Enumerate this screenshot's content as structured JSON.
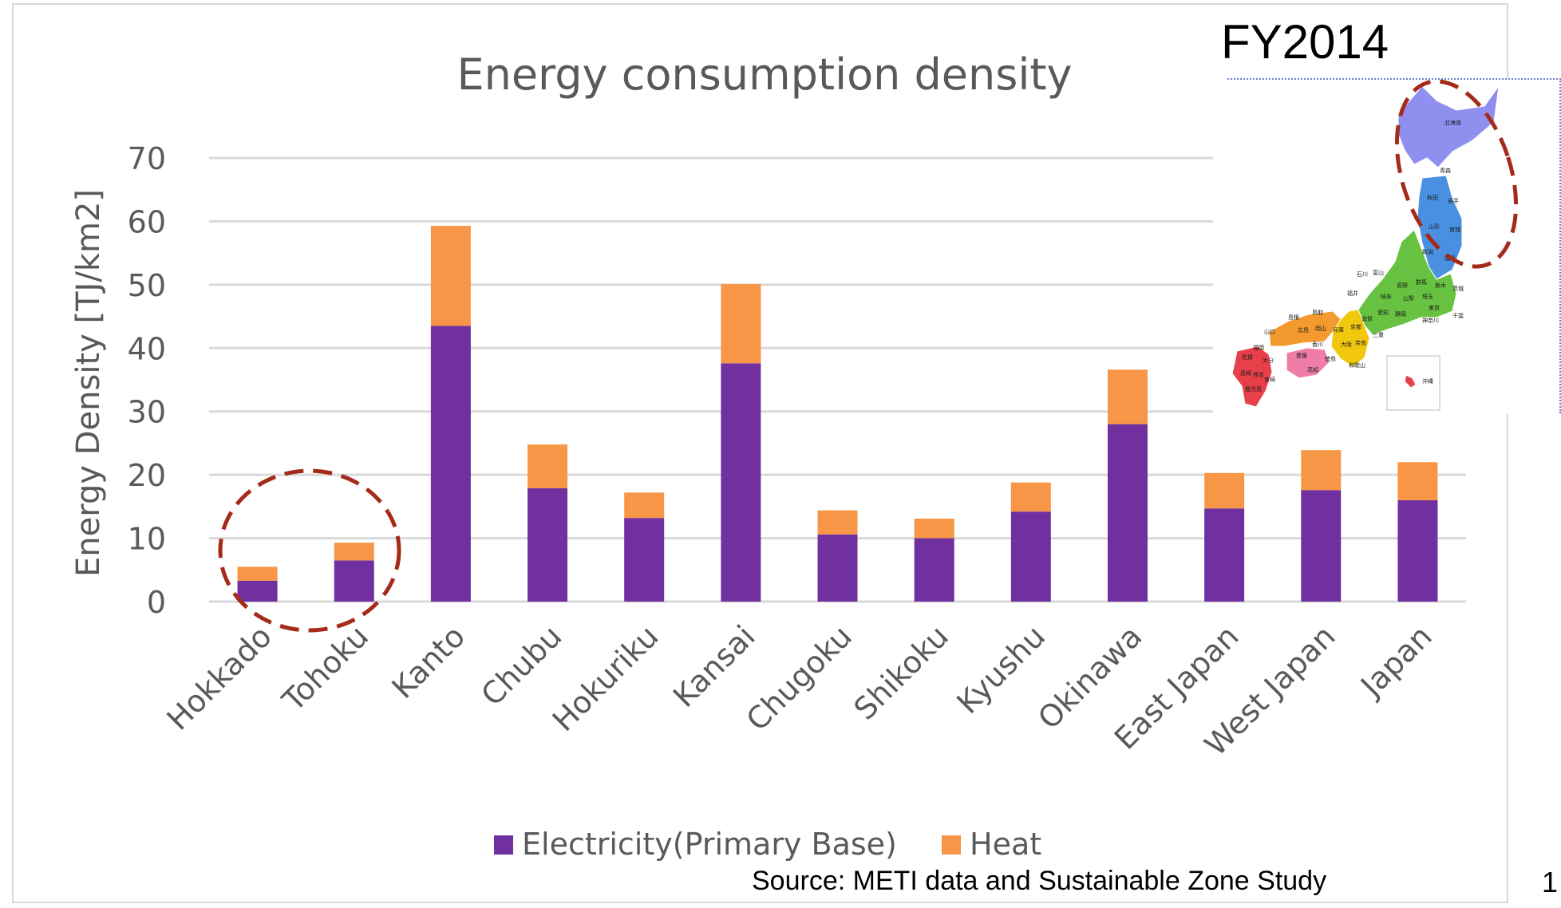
{
  "chart_data": {
    "type": "bar",
    "stacked": true,
    "title": "Energy consumption density",
    "ylabel": "Energy Density [TJ/km2]",
    "xlabel": "",
    "ylim": [
      0,
      70
    ],
    "yticks": [
      0,
      10,
      20,
      30,
      40,
      50,
      60,
      70
    ],
    "grid": true,
    "legend_position": "bottom",
    "categories": [
      "Hokkado",
      "Tohoku",
      "Kanto",
      "Chubu",
      "Hokuriku",
      "Kansai",
      "Chugoku",
      "Shikoku",
      "Kyushu",
      "Okinawa",
      "East Japan",
      "West Japan",
      "Japan"
    ],
    "series": [
      {
        "name": "Electricity(Primary Base)",
        "color": "#7030a0",
        "values": [
          3.3,
          6.5,
          43.5,
          17.9,
          13.2,
          37.6,
          10.6,
          10.0,
          14.2,
          28.0,
          14.7,
          17.6,
          16.0
        ]
      },
      {
        "name": "Heat",
        "color": "#f79646",
        "values": [
          2.2,
          2.8,
          15.8,
          6.9,
          4.0,
          12.5,
          3.8,
          3.1,
          4.6,
          8.6,
          5.6,
          6.3,
          6.0
        ]
      }
    ]
  },
  "fy_label": "FY2014",
  "source": "Source: METI data and Sustainable Zone Study",
  "page_number": "1",
  "highlight_color": "#a52a1a",
  "map": {
    "labels": [
      "北海道",
      "青森",
      "秋田",
      "岩手",
      "山形",
      "宮城",
      "新潟",
      "福島",
      "石川",
      "富山",
      "長野",
      "群馬",
      "栃木",
      "茨城",
      "福井",
      "岐阜",
      "山梨",
      "埼玉",
      "東京",
      "神奈川",
      "千葉",
      "島根",
      "鳥取",
      "広島",
      "岡山",
      "兵庫",
      "京都",
      "滋賀",
      "愛知",
      "静岡",
      "山口",
      "大阪",
      "奈良",
      "三重",
      "香川",
      "徳島",
      "愛媛",
      "高知",
      "和歌山",
      "福岡",
      "佐賀",
      "大分",
      "長崎",
      "熊本",
      "宮崎",
      "鹿児島",
      "沖縄"
    ],
    "region_colors": {
      "hokkaido": "#8f8ff0",
      "tohoku": "#4a90e0",
      "kanto_chubu": "#66c240",
      "kansai": "#f2c80f",
      "chugoku": "#f29a2e",
      "shikoku": "#f07ca8",
      "kyushu": "#e8404a"
    }
  }
}
